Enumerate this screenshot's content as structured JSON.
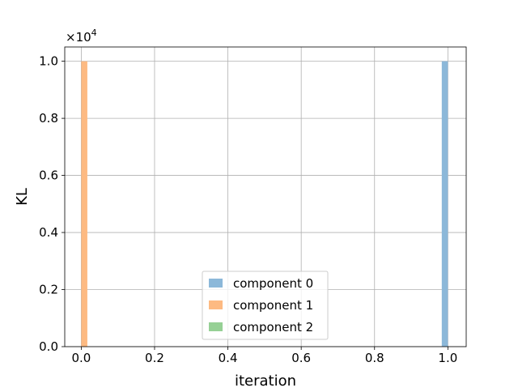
{
  "chart_data": {
    "type": "bar",
    "title": "",
    "xlabel": "iteration",
    "ylabel": "KL",
    "xlim": [
      -0.045,
      1.05
    ],
    "ylim": [
      0,
      10500
    ],
    "xticks": [
      0.0,
      0.2,
      0.4,
      0.6,
      0.8,
      1.0
    ],
    "xtick_labels": [
      "0.0",
      "0.2",
      "0.4",
      "0.6",
      "0.8",
      "1.0"
    ],
    "yticks": [
      0,
      2000,
      4000,
      6000,
      8000,
      10000
    ],
    "ytick_labels": [
      "0.0",
      "0.2",
      "0.4",
      "0.6",
      "0.8",
      "1.0"
    ],
    "y_offset_text": {
      "base": "×10",
      "exponent": "4"
    },
    "grid": true,
    "bar_width": 0.0167,
    "series": [
      {
        "name": "component 0",
        "color": "#8cb8d9",
        "x": [
          0.9917
        ],
        "values": [
          10000
        ]
      },
      {
        "name": "component 1",
        "color": "#fdba82",
        "x": [
          0.0083
        ],
        "values": [
          10000
        ]
      },
      {
        "name": "component 2",
        "color": "#96d095",
        "x": [],
        "values": []
      }
    ],
    "legend": {
      "placement": "lower-center"
    }
  }
}
